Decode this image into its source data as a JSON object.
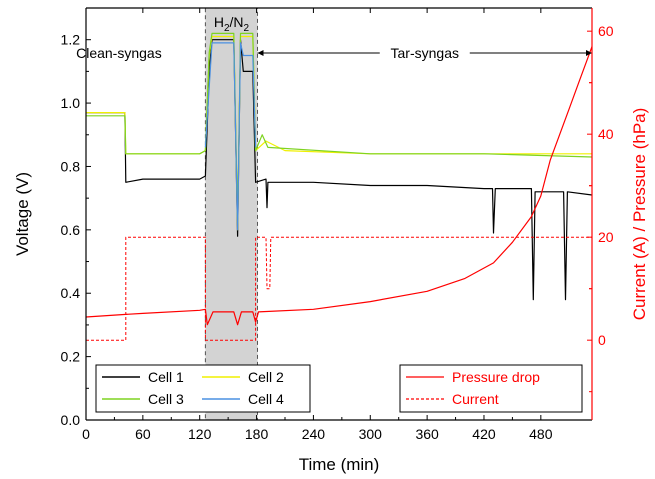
{
  "chart_data": {
    "type": "line",
    "xlabel": "Time (min)",
    "ylabel_left": "Voltage (V)",
    "ylabel_right": "Current (A) / Pressure (hPa)",
    "xlim": [
      0,
      534
    ],
    "ylim_left": [
      0.0,
      1.3
    ],
    "ylim_right": [
      -15.5,
      64.5
    ],
    "x_ticks": [
      "0",
      "60",
      "120",
      "180",
      "240",
      "300",
      "360",
      "420",
      "480"
    ],
    "y_left_ticks": [
      "0.0",
      "0.2",
      "0.4",
      "0.6",
      "0.8",
      "1.0",
      "1.2"
    ],
    "y_right_ticks": [
      "0",
      "20",
      "40",
      "60"
    ],
    "grid": false,
    "regions": [
      {
        "label": "Clean-syngas",
        "from": 0,
        "to": 42
      },
      {
        "label": "H2/N2",
        "label_html": "H<sub>2</sub>/N<sub>2</sub>",
        "from": 126,
        "to": 181,
        "shaded": true
      },
      {
        "label": "Tar-syngas",
        "from": 181,
        "to": 534
      }
    ],
    "series": [
      {
        "name": "Cell 1",
        "axis": "left",
        "color": "#000000",
        "style": "solid",
        "points": [
          [
            0,
            0.97
          ],
          [
            41,
            0.97
          ],
          [
            42,
            0.75
          ],
          [
            60,
            0.76
          ],
          [
            120,
            0.76
          ],
          [
            126,
            0.77
          ],
          [
            130,
            1.1
          ],
          [
            133,
            1.2
          ],
          [
            156,
            1.2
          ],
          [
            160,
            0.58
          ],
          [
            163,
            1.2
          ],
          [
            166,
            1.1
          ],
          [
            176,
            1.1
          ],
          [
            179,
            0.75
          ],
          [
            190,
            0.76
          ],
          [
            191,
            0.67
          ],
          [
            192,
            0.75
          ],
          [
            240,
            0.75
          ],
          [
            300,
            0.74
          ],
          [
            360,
            0.74
          ],
          [
            420,
            0.73
          ],
          [
            429,
            0.73
          ],
          [
            430,
            0.59
          ],
          [
            432,
            0.73
          ],
          [
            470,
            0.73
          ],
          [
            472,
            0.38
          ],
          [
            474,
            0.72
          ],
          [
            504,
            0.72
          ],
          [
            506,
            0.38
          ],
          [
            508,
            0.72
          ],
          [
            534,
            0.71
          ]
        ]
      },
      {
        "name": "Cell 2",
        "axis": "left",
        "color": "#f0f000",
        "style": "solid",
        "points": [
          [
            0,
            0.97
          ],
          [
            41,
            0.97
          ],
          [
            42,
            0.84
          ],
          [
            120,
            0.84
          ],
          [
            126,
            0.85
          ],
          [
            130,
            1.15
          ],
          [
            133,
            1.21
          ],
          [
            156,
            1.21
          ],
          [
            160,
            0.6
          ],
          [
            163,
            1.21
          ],
          [
            166,
            1.21
          ],
          [
            176,
            1.21
          ],
          [
            179,
            0.85
          ],
          [
            190,
            0.88
          ],
          [
            210,
            0.85
          ],
          [
            300,
            0.84
          ],
          [
            420,
            0.84
          ],
          [
            534,
            0.84
          ]
        ]
      },
      {
        "name": "Cell 3",
        "axis": "left",
        "color": "#7ed321",
        "style": "solid",
        "points": [
          [
            0,
            0.96
          ],
          [
            41,
            0.96
          ],
          [
            42,
            0.84
          ],
          [
            120,
            0.84
          ],
          [
            126,
            0.85
          ],
          [
            130,
            1.16
          ],
          [
            133,
            1.22
          ],
          [
            156,
            1.22
          ],
          [
            160,
            0.62
          ],
          [
            163,
            1.22
          ],
          [
            166,
            1.22
          ],
          [
            176,
            1.22
          ],
          [
            179,
            0.85
          ],
          [
            186,
            0.9
          ],
          [
            192,
            0.86
          ],
          [
            300,
            0.84
          ],
          [
            420,
            0.84
          ],
          [
            534,
            0.83
          ]
        ]
      },
      {
        "name": "Cell 4",
        "axis": "left",
        "color": "#4a90e2",
        "style": "solid",
        "points": [
          [
            126,
            0.86
          ],
          [
            133,
            1.19
          ],
          [
            156,
            1.19
          ],
          [
            160,
            0.6
          ],
          [
            163,
            1.19
          ],
          [
            166,
            1.15
          ],
          [
            176,
            1.15
          ],
          [
            179,
            0.86
          ]
        ]
      },
      {
        "name": "Pressure drop",
        "axis": "right",
        "color": "#ff0000",
        "style": "solid",
        "points": [
          [
            0,
            4.5
          ],
          [
            42,
            5.0
          ],
          [
            60,
            5.2
          ],
          [
            120,
            5.8
          ],
          [
            126,
            6.0
          ],
          [
            128,
            3.0
          ],
          [
            134,
            5.5
          ],
          [
            156,
            5.5
          ],
          [
            160,
            3.0
          ],
          [
            164,
            5.5
          ],
          [
            176,
            5.5
          ],
          [
            179,
            3.5
          ],
          [
            182,
            5.5
          ],
          [
            240,
            6.0
          ],
          [
            300,
            7.5
          ],
          [
            360,
            9.5
          ],
          [
            400,
            12.0
          ],
          [
            430,
            15.0
          ],
          [
            450,
            19.0
          ],
          [
            470,
            24.0
          ],
          [
            480,
            28.0
          ],
          [
            490,
            35.0
          ],
          [
            500,
            40.0
          ],
          [
            510,
            45.0
          ],
          [
            520,
            50.0
          ],
          [
            530,
            55.0
          ],
          [
            534,
            57.0
          ]
        ]
      },
      {
        "name": "Current",
        "axis": "right",
        "color": "#ff0000",
        "style": "dashed",
        "points": [
          [
            0,
            0
          ],
          [
            42,
            0
          ],
          [
            42,
            20
          ],
          [
            126,
            20
          ],
          [
            126,
            0
          ],
          [
            179,
            0
          ],
          [
            179,
            20
          ],
          [
            190,
            20
          ],
          [
            191,
            10
          ],
          [
            194,
            10
          ],
          [
            195,
            20
          ],
          [
            534,
            20
          ]
        ]
      }
    ],
    "legend_left": [
      "Cell 1",
      "Cell 2",
      "Cell 3",
      "Cell 4"
    ],
    "legend_right": [
      "Pressure drop",
      "Current"
    ],
    "colors": {
      "axis": "#000000",
      "right_axis": "#ff0000",
      "shade": "#d3d3d3"
    }
  }
}
